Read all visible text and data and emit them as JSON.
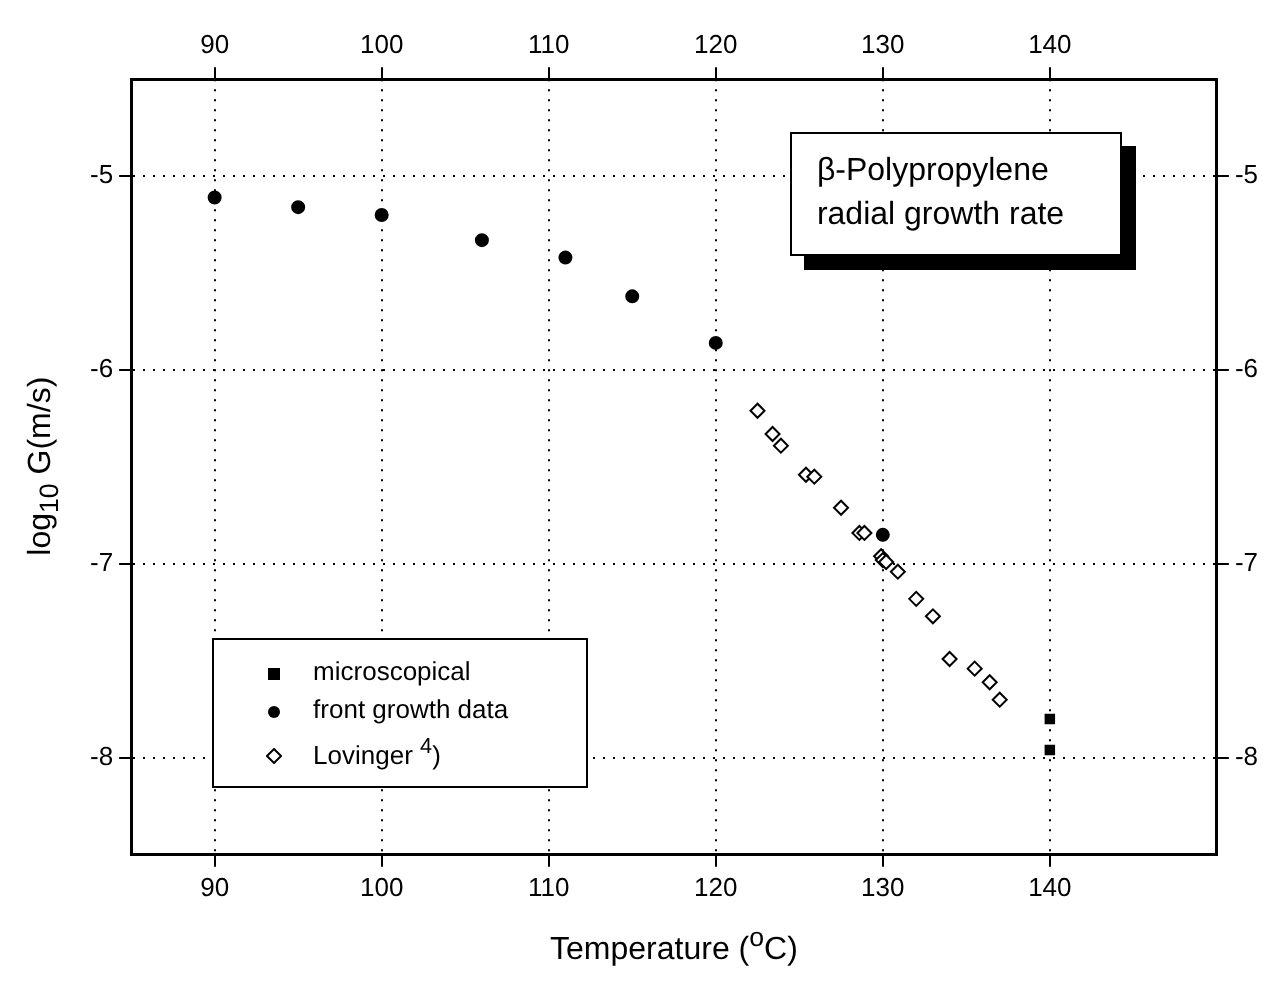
{
  "chart_data": {
    "type": "scatter",
    "xlabel": "Temperature ($^{o}$C)",
    "ylabel": "log$_{10}$ G(m/s)",
    "annotations": [
      "β-Polypropylene radial growth rate"
    ],
    "series": [
      {
        "name": "microscopical",
        "color": "#000000",
        "marker": "square",
        "x": [
          140,
          140
        ],
        "values": [
          -7.8,
          -7.96
        ]
      },
      {
        "name": "front growth data",
        "color": "#000000",
        "marker": "circle",
        "x": [
          90,
          95,
          100,
          106,
          111,
          115,
          120,
          130
        ],
        "values": [
          -5.11,
          -5.16,
          -5.2,
          -5.33,
          -5.42,
          -5.62,
          -5.86,
          -6.85
        ]
      },
      {
        "name": "Lovinger $^{4}$)",
        "color": "#000000",
        "marker": "diamond",
        "x": [
          122.5,
          123.4,
          123.9,
          125.4,
          125.9,
          127.5,
          128.6,
          128.9,
          129.9,
          130.0,
          130.2,
          130.9,
          132.0,
          133.0,
          134.0,
          135.5,
          136.4,
          137.0
        ],
        "values": [
          -6.21,
          -6.33,
          -6.39,
          -6.54,
          -6.55,
          -6.71,
          -6.84,
          -6.84,
          -6.96,
          -6.98,
          -6.99,
          -7.04,
          -7.18,
          -7.27,
          -7.49,
          -7.54,
          -7.61,
          -7.7
        ]
      }
    ],
    "xlim": [
      85,
      150
    ],
    "xticks": [
      90,
      100,
      110,
      120,
      130,
      140
    ],
    "x2lim": [
      85,
      150
    ],
    "x2ticks": [
      90,
      100,
      110,
      120,
      130,
      140
    ],
    "ylim": [
      -8.5,
      -4.5
    ],
    "yticks": [
      -8,
      -7,
      -6,
      -5
    ],
    "y2lim": [
      -8.5,
      -4.5
    ],
    "y2ticks": [
      -8,
      -7,
      -6,
      -5
    ],
    "grid": true,
    "legend": "bottom left"
  }
}
